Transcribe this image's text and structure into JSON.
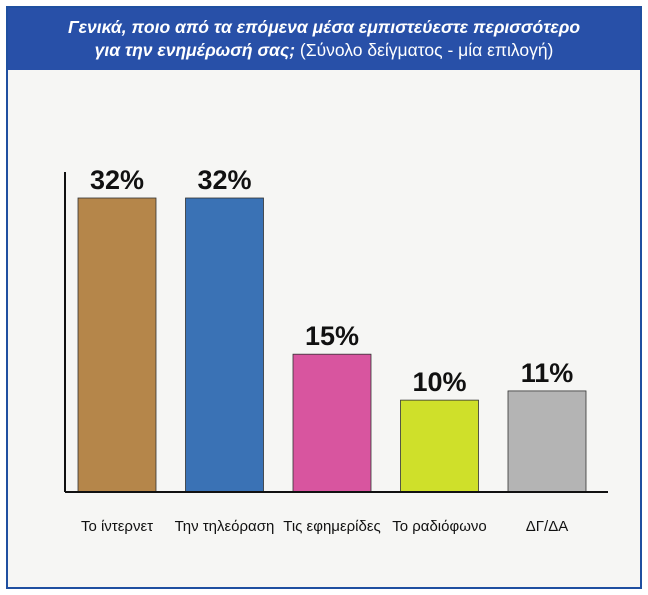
{
  "title_line1": "Γενικά, ποιο από τα επόμενα μέσα εμπιστεύεστε περισσότερο",
  "title_line2_bold": "για την ενημέρωσή σας;",
  "title_line2_rest": " (Σύνολο δείγματος - μία επιλογή)",
  "colors": {
    "header": "#2850a8",
    "axis": "#111111"
  },
  "chart_data": {
    "type": "bar",
    "title": "Γενικά, ποιο από τα επόμενα μέσα εμπιστεύεστε περισσότερο για την ενημέρωσή σας; (Σύνολο δείγματος - μία επιλογή)",
    "categories": [
      "Το ίντερνετ",
      "Την τηλεόραση",
      "Τις εφημερίδες",
      "Το ραδιόφωνο",
      "ΔΓ/ΔΑ"
    ],
    "values": [
      32,
      32,
      15,
      10,
      11
    ],
    "value_labels": [
      "32%",
      "32%",
      "15%",
      "10%",
      "11%"
    ],
    "bar_colors": [
      "#b5864a",
      "#3a72b5",
      "#d8559f",
      "#cfe02a",
      "#b4b4b4"
    ],
    "xlabel": "",
    "ylabel": "",
    "ylim": [
      0,
      40
    ],
    "grid": false,
    "legend": "none"
  }
}
